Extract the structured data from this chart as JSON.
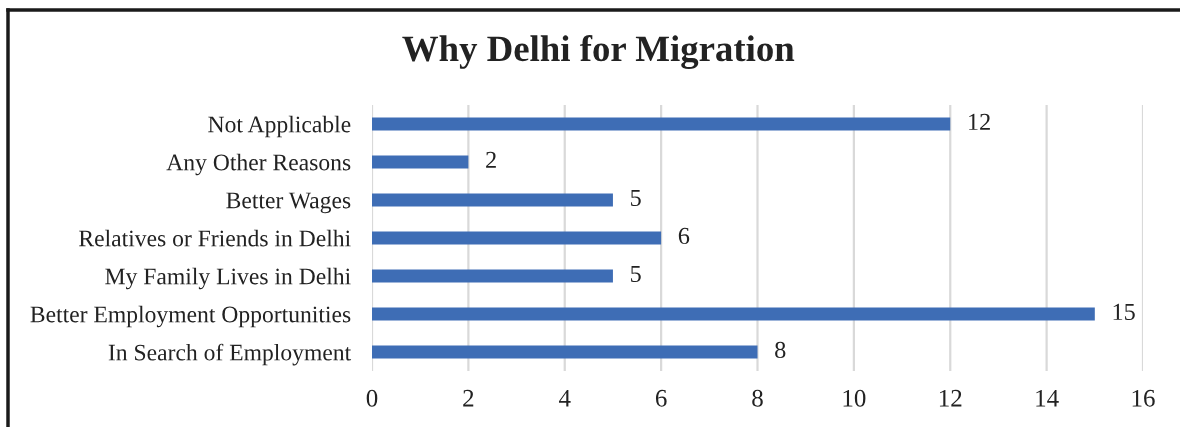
{
  "chart_data": {
    "type": "bar",
    "orientation": "horizontal",
    "title": "Why Delhi for Migration",
    "categories": [
      "Not Applicable",
      "Any Other Reasons",
      "Better Wages",
      "Relatives or Friends in Delhi",
      "My Family Lives in Delhi",
      "Better Employment Opportunities",
      "In Search of Employment"
    ],
    "values": [
      12,
      2,
      5,
      6,
      5,
      15,
      8
    ],
    "color": "#3e6db5",
    "xlim": [
      0,
      16
    ],
    "xticks": [
      0,
      2,
      4,
      6,
      8,
      10,
      12,
      14,
      16
    ],
    "grid": "x",
    "data_labels": true
  }
}
